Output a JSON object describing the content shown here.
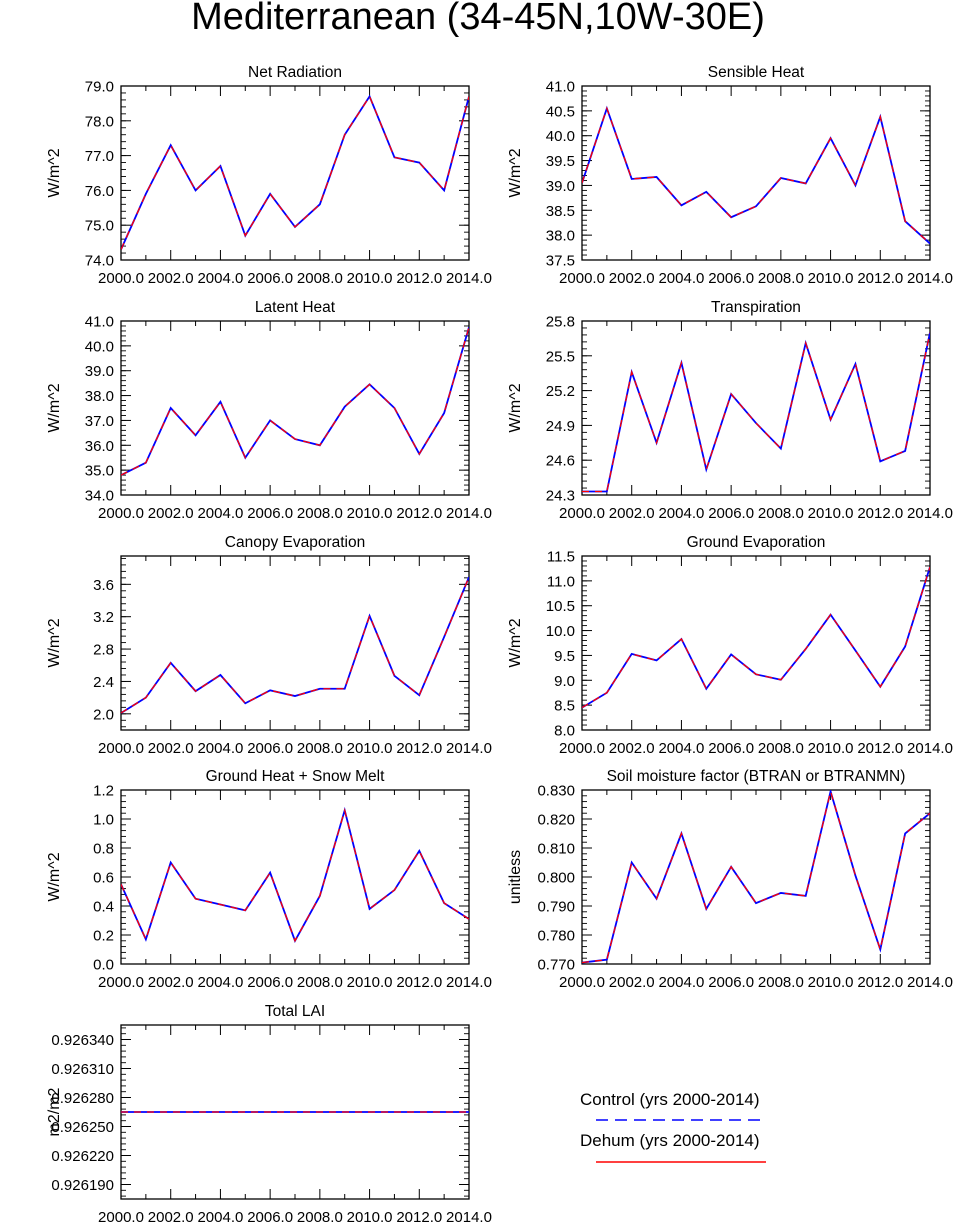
{
  "page": {
    "title": "Mediterranean (34-45N,10W-30E)"
  },
  "colors": {
    "control": "#0000ff",
    "dehum": "#ff0000",
    "axis": "#000000"
  },
  "legend": {
    "placement": "bottom-right",
    "control_label": "Control (yrs 2000-2014)",
    "dehum_label": "Dehum (yrs 2000-2014)"
  },
  "chart_data": [
    {
      "type": "line",
      "title": "Net Radiation",
      "ylabel": "W/m^2",
      "x": [
        2000,
        2001,
        2002,
        2003,
        2004,
        2005,
        2006,
        2007,
        2008,
        2009,
        2010,
        2011,
        2012,
        2013,
        2014
      ],
      "xticks": [
        "2000.0",
        "2002.0",
        "2004.0",
        "2006.0",
        "2008.0",
        "2010.0",
        "2012.0",
        "2014.0"
      ],
      "ylim": [
        74.0,
        79.0
      ],
      "yticks": [
        "74.0",
        "75.0",
        "76.0",
        "77.0",
        "78.0",
        "79.0"
      ],
      "series": [
        {
          "name": "Control (yrs 2000-2014)",
          "values": [
            74.3,
            75.9,
            77.3,
            76.0,
            76.7,
            74.7,
            75.9,
            74.95,
            75.6,
            77.6,
            78.7,
            76.95,
            76.8,
            76.0,
            78.7
          ]
        },
        {
          "name": "Dehum (yrs 2000-2014)",
          "values": [
            74.3,
            75.9,
            77.3,
            76.0,
            76.7,
            74.7,
            75.9,
            74.95,
            75.6,
            77.6,
            78.7,
            76.95,
            76.8,
            76.0,
            78.7
          ]
        }
      ]
    },
    {
      "type": "line",
      "title": "Sensible Heat",
      "ylabel": "W/m^2",
      "x": [
        2000,
        2001,
        2002,
        2003,
        2004,
        2005,
        2006,
        2007,
        2008,
        2009,
        2010,
        2011,
        2012,
        2013,
        2014
      ],
      "xticks": [
        "2000.0",
        "2002.0",
        "2004.0",
        "2006.0",
        "2008.0",
        "2010.0",
        "2012.0",
        "2014.0"
      ],
      "ylim": [
        37.5,
        41.0
      ],
      "yticks": [
        "37.5",
        "38.0",
        "38.5",
        "39.0",
        "39.5",
        "40.0",
        "40.5",
        "41.0"
      ],
      "series": [
        {
          "name": "Control (yrs 2000-2014)",
          "values": [
            39.05,
            40.55,
            39.13,
            39.17,
            38.6,
            38.87,
            38.36,
            38.58,
            39.15,
            39.04,
            39.95,
            39.0,
            40.38,
            38.28,
            37.83
          ]
        },
        {
          "name": "Dehum (yrs 2000-2014)",
          "values": [
            39.05,
            40.55,
            39.13,
            39.17,
            38.6,
            38.87,
            38.36,
            38.58,
            39.15,
            39.04,
            39.95,
            39.0,
            40.38,
            38.28,
            37.83
          ]
        }
      ]
    },
    {
      "type": "line",
      "title": "Latent Heat",
      "ylabel": "W/m^2",
      "x": [
        2000,
        2001,
        2002,
        2003,
        2004,
        2005,
        2006,
        2007,
        2008,
        2009,
        2010,
        2011,
        2012,
        2013,
        2014
      ],
      "xticks": [
        "2000.0",
        "2002.0",
        "2004.0",
        "2006.0",
        "2008.0",
        "2010.0",
        "2012.0",
        "2014.0"
      ],
      "ylim": [
        34.0,
        41.0
      ],
      "yticks": [
        "34.0",
        "35.0",
        "36.0",
        "37.0",
        "38.0",
        "39.0",
        "40.0",
        "41.0"
      ],
      "series": [
        {
          "name": "Control (yrs 2000-2014)",
          "values": [
            34.8,
            35.3,
            37.5,
            36.4,
            37.75,
            35.5,
            37.0,
            36.25,
            36.0,
            37.55,
            38.45,
            37.5,
            35.65,
            37.3,
            40.75
          ]
        },
        {
          "name": "Dehum (yrs 2000-2014)",
          "values": [
            34.8,
            35.3,
            37.5,
            36.4,
            37.75,
            35.5,
            37.0,
            36.25,
            36.0,
            37.55,
            38.45,
            37.5,
            35.65,
            37.3,
            40.75
          ]
        }
      ]
    },
    {
      "type": "line",
      "title": "Transpiration",
      "ylabel": "W/m^2",
      "x": [
        2000,
        2001,
        2002,
        2003,
        2004,
        2005,
        2006,
        2007,
        2008,
        2009,
        2010,
        2011,
        2012,
        2013,
        2014
      ],
      "xticks": [
        "2000.0",
        "2002.0",
        "2004.0",
        "2006.0",
        "2008.0",
        "2010.0",
        "2012.0",
        "2014.0"
      ],
      "ylim": [
        24.3,
        25.8
      ],
      "yticks": [
        "24.3",
        "24.6",
        "24.9",
        "25.2",
        "25.5",
        "25.8"
      ],
      "series": [
        {
          "name": "Control (yrs 2000-2014)",
          "values": [
            24.33,
            24.33,
            25.36,
            24.75,
            25.44,
            24.52,
            25.17,
            24.92,
            24.7,
            25.61,
            24.95,
            25.43,
            24.59,
            24.68,
            25.7
          ]
        },
        {
          "name": "Dehum (yrs 2000-2014)",
          "values": [
            24.33,
            24.33,
            25.36,
            24.75,
            25.44,
            24.52,
            25.17,
            24.92,
            24.7,
            25.61,
            24.95,
            25.43,
            24.59,
            24.68,
            25.7
          ]
        }
      ]
    },
    {
      "type": "line",
      "title": "Canopy Evaporation",
      "ylabel": "W/m^2",
      "x": [
        2000,
        2001,
        2002,
        2003,
        2004,
        2005,
        2006,
        2007,
        2008,
        2009,
        2010,
        2011,
        2012,
        2013,
        2014
      ],
      "xticks": [
        "2000.0",
        "2002.0",
        "2004.0",
        "2006.0",
        "2008.0",
        "2010.0",
        "2012.0",
        "2014.0"
      ],
      "ylim": [
        1.8,
        3.95
      ],
      "yticks": [
        "2.0",
        "2.4",
        "2.8",
        "3.2",
        "3.6"
      ],
      "series": [
        {
          "name": "Control (yrs 2000-2014)",
          "values": [
            2.01,
            2.2,
            2.63,
            2.28,
            2.48,
            2.13,
            2.29,
            2.22,
            2.31,
            2.31,
            3.21,
            2.47,
            2.23,
            2.95,
            3.69
          ]
        },
        {
          "name": "Dehum (yrs 2000-2014)",
          "values": [
            2.01,
            2.2,
            2.63,
            2.28,
            2.48,
            2.13,
            2.29,
            2.22,
            2.31,
            2.31,
            3.21,
            2.47,
            2.23,
            2.95,
            3.69
          ]
        }
      ]
    },
    {
      "type": "line",
      "title": "Ground Evaporation",
      "ylabel": "W/m^2",
      "x": [
        2000,
        2001,
        2002,
        2003,
        2004,
        2005,
        2006,
        2007,
        2008,
        2009,
        2010,
        2011,
        2012,
        2013,
        2014
      ],
      "xticks": [
        "2000.0",
        "2002.0",
        "2004.0",
        "2006.0",
        "2008.0",
        "2010.0",
        "2012.0",
        "2014.0"
      ],
      "ylim": [
        8.0,
        11.5
      ],
      "yticks": [
        "8.0",
        "8.5",
        "9.0",
        "9.5",
        "10.0",
        "10.5",
        "11.0",
        "11.5"
      ],
      "series": [
        {
          "name": "Control (yrs 2000-2014)",
          "values": [
            8.45,
            8.75,
            9.53,
            9.4,
            9.83,
            8.83,
            9.52,
            9.12,
            9.01,
            9.63,
            10.32,
            9.6,
            8.87,
            9.68,
            11.28
          ]
        },
        {
          "name": "Dehum (yrs 2000-2014)",
          "values": [
            8.45,
            8.75,
            9.53,
            9.4,
            9.83,
            8.83,
            9.52,
            9.12,
            9.01,
            9.63,
            10.32,
            9.6,
            8.87,
            9.68,
            11.28
          ]
        }
      ]
    },
    {
      "type": "line",
      "title": "Ground Heat + Snow Melt",
      "ylabel": "W/m^2",
      "x": [
        2000,
        2001,
        2002,
        2003,
        2004,
        2005,
        2006,
        2007,
        2008,
        2009,
        2010,
        2011,
        2012,
        2013,
        2014
      ],
      "xticks": [
        "2000.0",
        "2002.0",
        "2004.0",
        "2006.0",
        "2008.0",
        "2010.0",
        "2012.0",
        "2014.0"
      ],
      "ylim": [
        0.0,
        1.2
      ],
      "yticks": [
        "0.0",
        "0.2",
        "0.4",
        "0.6",
        "0.8",
        "1.0",
        "1.2"
      ],
      "series": [
        {
          "name": "Control (yrs 2000-2014)",
          "values": [
            0.55,
            0.17,
            0.7,
            0.45,
            0.41,
            0.37,
            0.63,
            0.16,
            0.47,
            1.06,
            0.38,
            0.51,
            0.78,
            0.42,
            0.31
          ]
        },
        {
          "name": "Dehum (yrs 2000-2014)",
          "values": [
            0.55,
            0.17,
            0.7,
            0.45,
            0.41,
            0.37,
            0.63,
            0.16,
            0.47,
            1.06,
            0.38,
            0.51,
            0.78,
            0.42,
            0.31
          ]
        }
      ]
    },
    {
      "type": "line",
      "title": "Soil moisture factor (BTRAN or BTRANMN)",
      "ylabel": "unitless",
      "x": [
        2000,
        2001,
        2002,
        2003,
        2004,
        2005,
        2006,
        2007,
        2008,
        2009,
        2010,
        2011,
        2012,
        2013,
        2014
      ],
      "xticks": [
        "2000.0",
        "2002.0",
        "2004.0",
        "2006.0",
        "2008.0",
        "2010.0",
        "2012.0",
        "2014.0"
      ],
      "ylim": [
        0.77,
        0.83
      ],
      "yticks": [
        "0.770",
        "0.780",
        "0.790",
        "0.800",
        "0.810",
        "0.820",
        "0.830"
      ],
      "series": [
        {
          "name": "Control (yrs 2000-2014)",
          "values": [
            0.7705,
            0.7715,
            0.805,
            0.7925,
            0.815,
            0.789,
            0.8035,
            0.791,
            0.7945,
            0.7935,
            0.8295,
            0.8005,
            0.775,
            0.815,
            0.822
          ]
        },
        {
          "name": "Dehum (yrs 2000-2014)",
          "values": [
            0.7705,
            0.7715,
            0.805,
            0.7925,
            0.815,
            0.789,
            0.8035,
            0.791,
            0.7945,
            0.7935,
            0.8295,
            0.8005,
            0.775,
            0.815,
            0.822
          ]
        }
      ]
    },
    {
      "type": "line",
      "title": "Total LAI",
      "ylabel": "m2/m2",
      "x": [
        2000,
        2001,
        2002,
        2003,
        2004,
        2005,
        2006,
        2007,
        2008,
        2009,
        2010,
        2011,
        2012,
        2013,
        2014
      ],
      "xticks": [
        "2000.0",
        "2002.0",
        "2004.0",
        "2006.0",
        "2008.0",
        "2010.0",
        "2012.0",
        "2014.0"
      ],
      "ylim": [
        0.926175,
        0.926355
      ],
      "yticks": [
        "0.926190",
        "0.926220",
        "0.926250",
        "0.926280",
        "0.926310",
        "0.926340"
      ],
      "series": [
        {
          "name": "Control (yrs 2000-2014)",
          "values": [
            0.926265,
            0.926265,
            0.926265,
            0.926265,
            0.926265,
            0.926265,
            0.926265,
            0.926265,
            0.926265,
            0.926265,
            0.926265,
            0.926265,
            0.926265,
            0.926265,
            0.926265
          ]
        },
        {
          "name": "Dehum (yrs 2000-2014)",
          "values": [
            0.926265,
            0.926265,
            0.926265,
            0.926265,
            0.926265,
            0.926265,
            0.926265,
            0.926265,
            0.926265,
            0.926265,
            0.926265,
            0.926265,
            0.926265,
            0.926265,
            0.926265
          ]
        }
      ]
    }
  ]
}
